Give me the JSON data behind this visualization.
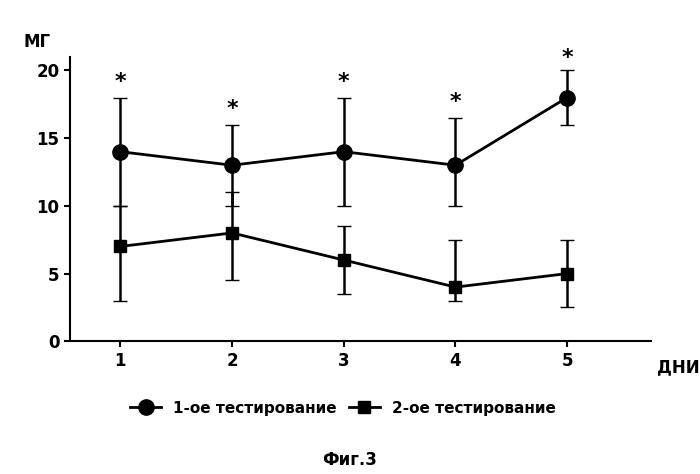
{
  "x": [
    1,
    2,
    3,
    4,
    5
  ],
  "series1_y": [
    14.0,
    13.0,
    14.0,
    13.0,
    18.0
  ],
  "series1_yerr_upper": [
    4.0,
    3.0,
    4.0,
    3.5,
    2.0
  ],
  "series1_yerr_lower": [
    4.0,
    3.0,
    4.0,
    3.0,
    2.0
  ],
  "series2_y": [
    7.0,
    8.0,
    6.0,
    4.0,
    5.0
  ],
  "series2_yerr_upper": [
    3.0,
    3.0,
    2.5,
    3.5,
    2.5
  ],
  "series2_yerr_lower": [
    4.0,
    3.5,
    2.5,
    1.0,
    2.5
  ],
  "ylabel": "МГ",
  "xlabel": "ДНИ",
  "ylim": [
    0,
    21
  ],
  "xlim": [
    0.55,
    5.75
  ],
  "yticks": [
    0,
    5,
    10,
    15,
    20
  ],
  "xticks": [
    1,
    2,
    3,
    4,
    5
  ],
  "legend1": "1-ое тестирование",
  "legend2": "2-ое тестирование",
  "caption": "Фиг.3",
  "line_color": "#000000",
  "marker1": "o",
  "marker2": "s",
  "markersize1": 11,
  "markersize2": 9,
  "linewidth": 2.0,
  "capsize": 5,
  "elinewidth": 1.8,
  "background_color": "#ffffff",
  "label_fontsize": 12,
  "tick_fontsize": 12,
  "legend_fontsize": 11,
  "caption_fontsize": 12,
  "asterisk_fontsize": 16
}
